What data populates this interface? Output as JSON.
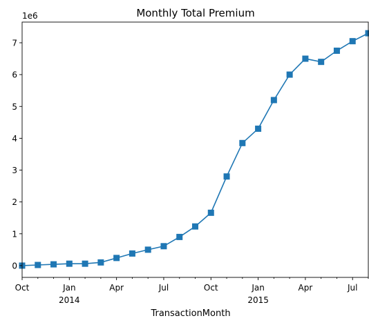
{
  "chart_data": {
    "type": "line",
    "title": "Monthly Total Premium",
    "xlabel": "TransactionMonth",
    "ylabel": "",
    "y_offset_label": "1e6",
    "ylim": [
      -0.37,
      7.65
    ],
    "y_ticks": [
      0,
      1,
      2,
      3,
      4,
      5,
      6,
      7
    ],
    "y_tick_labels": [
      "0",
      "1",
      "2",
      "3",
      "4",
      "5",
      "6",
      "7"
    ],
    "x": [
      "2013-10",
      "2013-11",
      "2013-12",
      "2014-01",
      "2014-02",
      "2014-03",
      "2014-04",
      "2014-05",
      "2014-06",
      "2014-07",
      "2014-08",
      "2014-09",
      "2014-10",
      "2014-11",
      "2014-12",
      "2015-01",
      "2015-02",
      "2015-03",
      "2015-04",
      "2015-05",
      "2015-06",
      "2015-07",
      "2015-08"
    ],
    "x_tick_labels": [
      {
        "x": "2013-10",
        "label": "Oct",
        "sub": ""
      },
      {
        "x": "2014-01",
        "label": "Jan",
        "sub": "2014"
      },
      {
        "x": "2014-04",
        "label": "Apr",
        "sub": ""
      },
      {
        "x": "2014-07",
        "label": "Jul",
        "sub": ""
      },
      {
        "x": "2014-10",
        "label": "Oct",
        "sub": ""
      },
      {
        "x": "2015-01",
        "label": "Jan",
        "sub": "2015"
      },
      {
        "x": "2015-04",
        "label": "Apr",
        "sub": ""
      },
      {
        "x": "2015-07",
        "label": "Jul",
        "sub": ""
      }
    ],
    "series": [
      {
        "values": [
          0.0,
          0.02,
          0.04,
          0.06,
          0.06,
          0.1,
          0.24,
          0.38,
          0.5,
          0.61,
          0.9,
          1.23,
          1.66,
          2.8,
          3.85,
          4.3,
          5.2,
          6.0,
          6.5,
          6.4,
          6.75,
          7.05,
          7.3
        ],
        "color": "#1f77b4",
        "marker": "square"
      }
    ],
    "grid": false,
    "legend": "none"
  }
}
